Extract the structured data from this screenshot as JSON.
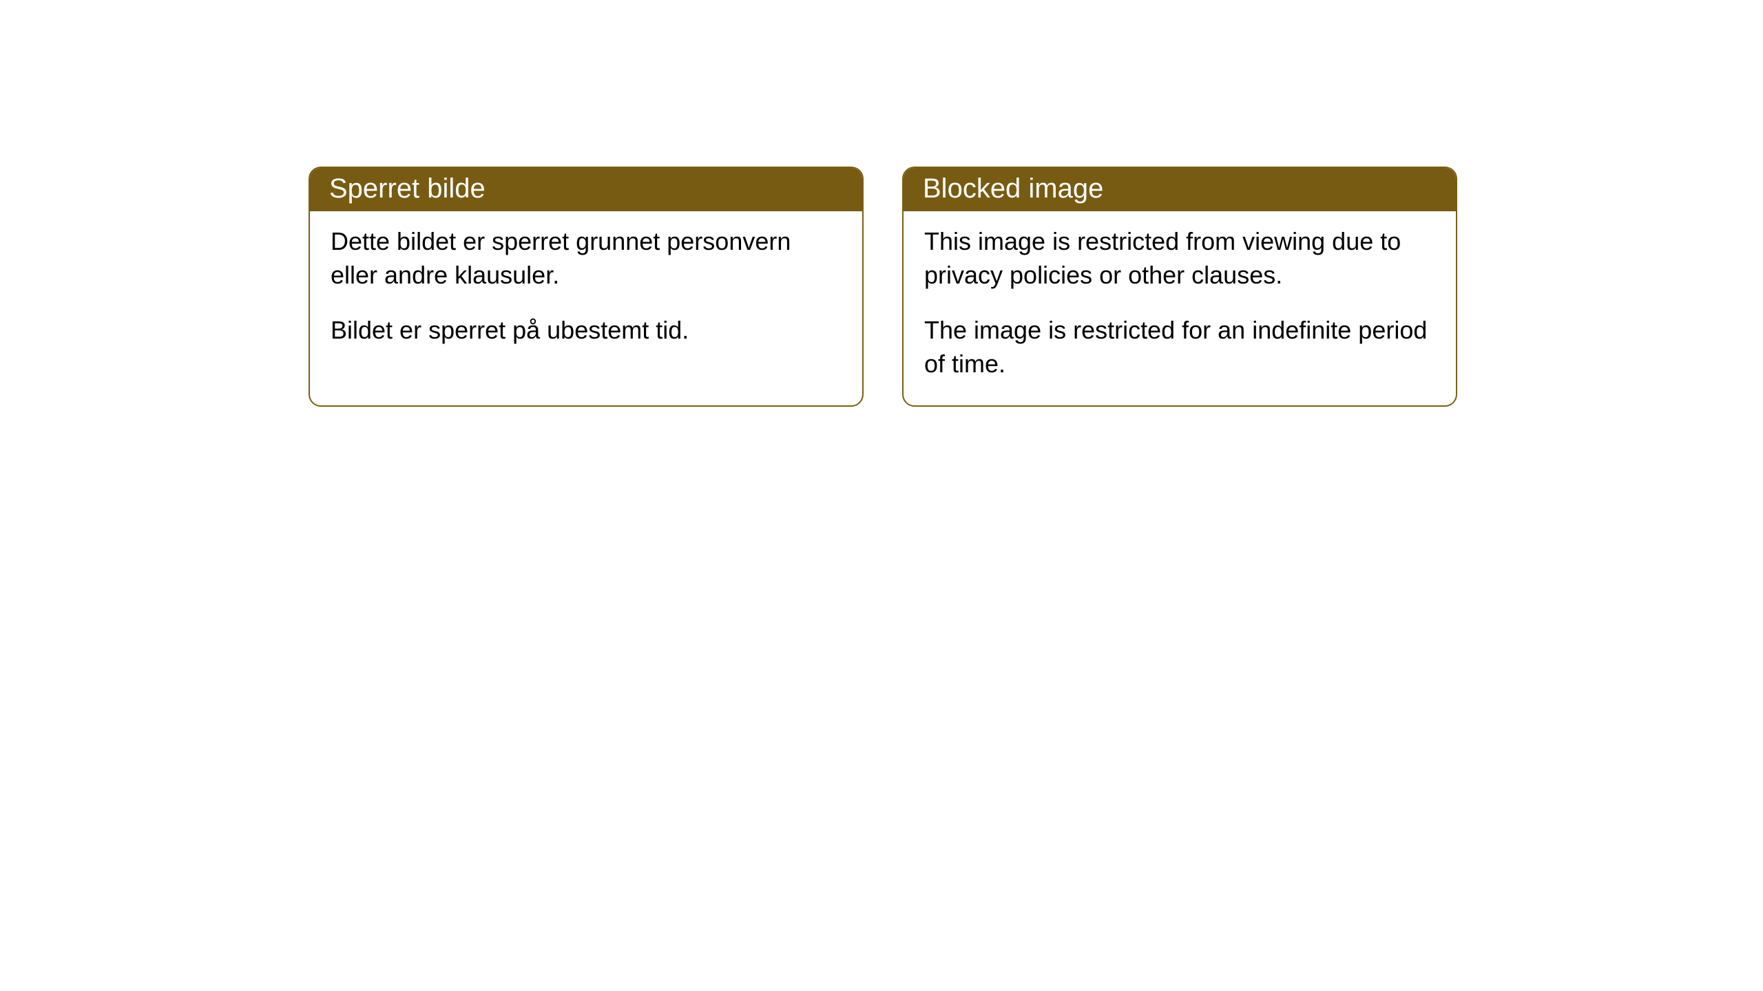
{
  "style": {
    "header_background": "#785b12",
    "header_text_color": "#ffffff",
    "border_color": "#7a5f13",
    "body_text_color": "#000000",
    "card_background": "#ffffff",
    "page_background": "#ffffff",
    "header_fontsize": 40,
    "body_fontsize": 36,
    "border_radius": 18
  },
  "cards": [
    {
      "title": "Sperret bilde",
      "paragraphs": [
        "Dette bildet er sperret grunnet personvern eller andre klausuler.",
        "Bildet er sperret på ubestemt tid."
      ]
    },
    {
      "title": "Blocked image",
      "paragraphs": [
        "This image is restricted from viewing due to privacy policies or other clauses.",
        "The image is restricted for an indefinite period of time."
      ]
    }
  ]
}
